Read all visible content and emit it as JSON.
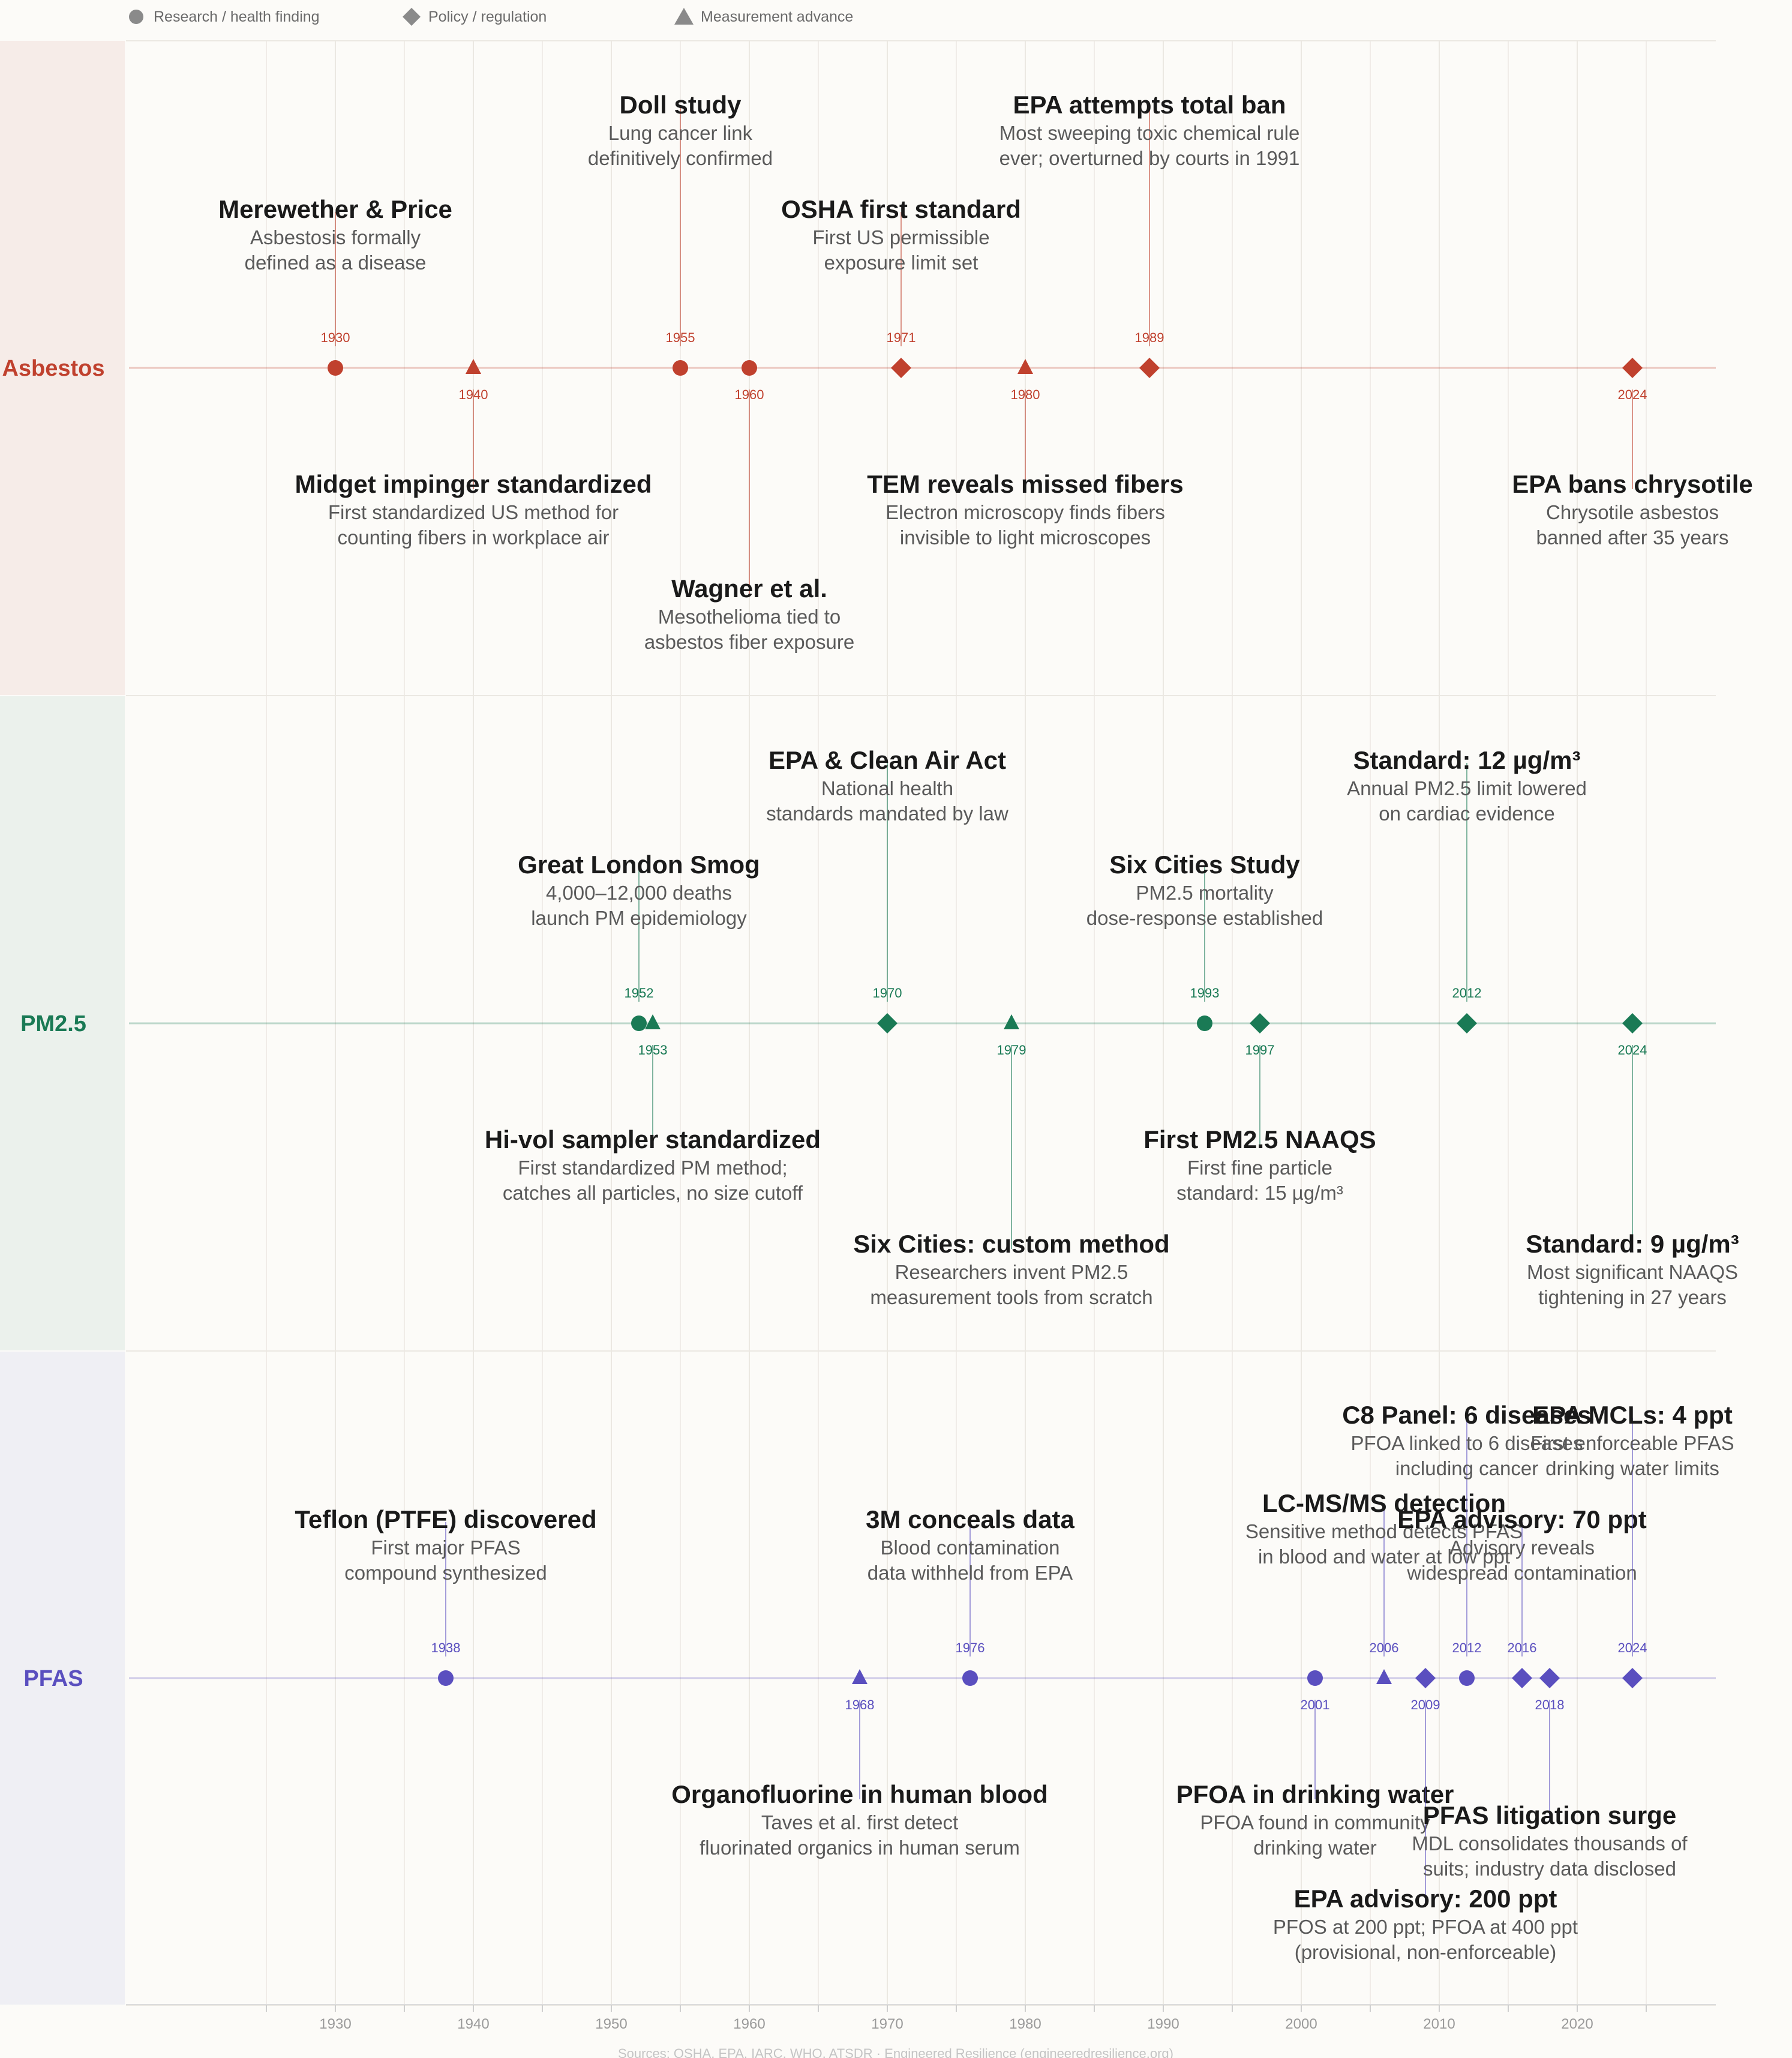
{
  "legend": {
    "research": "Research / health finding",
    "policy": "Policy / regulation",
    "measurement": "Measurement advance"
  },
  "footer": "Sources: OSHA, EPA, IARC, WHO, ATSDR · Engineered Resilience (engineeredresilience.org)",
  "colors": {
    "asbestos": "#c0412e",
    "pm25": "#1a7a55",
    "pfas": "#5a4fbf",
    "band_asbestos": "#f6ece8",
    "band_pm25": "#ebf1ec",
    "band_pfas": "#efeff4",
    "background": "#fcfbf8",
    "grid": "#ebe8e2",
    "tick_text": "#9a9a9a",
    "title_text": "#1a1a1a",
    "desc_text": "#5a5a5a"
  },
  "chart_data": {
    "type": "timeline",
    "x_axis": {
      "ticks": [
        1930,
        1940,
        1950,
        1960,
        1970,
        1980,
        1990,
        2000,
        2010,
        2020
      ],
      "range": [
        1915,
        2030
      ]
    },
    "grid": true,
    "legend_position": "top-left",
    "series": [
      {
        "name": "Asbestos",
        "color_key": "asbestos",
        "events": [
          {
            "year": 1930,
            "kind": "research",
            "side": "above",
            "tier": 1,
            "title": "Merewether & Price",
            "desc": [
              "Asbestosis formally",
              "defined as a disease"
            ]
          },
          {
            "year": 1940,
            "kind": "measurement",
            "side": "below",
            "tier": 1,
            "title": "Midget impinger standardized",
            "desc": [
              "First standardized US method for",
              "counting fibers in workplace air"
            ]
          },
          {
            "year": 1955,
            "kind": "research",
            "side": "above",
            "tier": 2,
            "title": "Doll study",
            "desc": [
              "Lung cancer link",
              "definitively confirmed"
            ]
          },
          {
            "year": 1960,
            "kind": "research",
            "side": "below",
            "tier": 2,
            "title": "Wagner et al.",
            "desc": [
              "Mesothelioma tied to",
              "asbestos fiber exposure"
            ]
          },
          {
            "year": 1971,
            "kind": "policy",
            "side": "above",
            "tier": 1,
            "title": "OSHA first standard",
            "desc": [
              "First US permissible",
              "exposure limit set"
            ]
          },
          {
            "year": 1980,
            "kind": "measurement",
            "side": "below",
            "tier": 1,
            "title": "TEM reveals missed fibers",
            "desc": [
              "Electron microscopy finds fibers",
              "invisible to light microscopes"
            ]
          },
          {
            "year": 1989,
            "kind": "policy",
            "side": "above",
            "tier": 2,
            "title": "EPA attempts total ban",
            "desc": [
              "Most sweeping toxic chemical rule",
              "ever; overturned by courts in 1991"
            ]
          },
          {
            "year": 2024,
            "kind": "policy",
            "side": "below",
            "tier": 1,
            "title": "EPA bans chrysotile",
            "desc": [
              "Chrysotile asbestos",
              "banned after 35 years"
            ]
          }
        ]
      },
      {
        "name": "PM2.5",
        "color_key": "pm25",
        "events": [
          {
            "year": 1952,
            "kind": "research",
            "side": "above",
            "tier": 1,
            "title": "Great London Smog",
            "desc": [
              "4,000–12,000 deaths",
              "launch PM epidemiology"
            ]
          },
          {
            "year": 1953,
            "kind": "measurement",
            "side": "below",
            "tier": 1,
            "title": "Hi-vol sampler standardized",
            "desc": [
              "First standardized PM method;",
              "catches all particles, no size cutoff"
            ]
          },
          {
            "year": 1970,
            "kind": "policy",
            "side": "above",
            "tier": 2,
            "title": "EPA & Clean Air Act",
            "desc": [
              "National health",
              "standards mandated by law"
            ]
          },
          {
            "year": 1979,
            "kind": "measurement",
            "side": "below",
            "tier": 2,
            "title": "Six Cities: custom method",
            "desc": [
              "Researchers invent PM2.5",
              "measurement tools from scratch"
            ]
          },
          {
            "year": 1993,
            "kind": "research",
            "side": "above",
            "tier": 1,
            "title": "Six Cities Study",
            "desc": [
              "PM2.5 mortality",
              "dose-response established"
            ]
          },
          {
            "year": 1997,
            "kind": "policy",
            "side": "below",
            "tier": 1,
            "title": "First PM2.5 NAAQS",
            "desc": [
              "First fine particle",
              "standard: 15 µg/m³"
            ]
          },
          {
            "year": 2012,
            "kind": "policy",
            "side": "above",
            "tier": 2,
            "title": "Standard: 12 µg/m³",
            "desc": [
              "Annual PM2.5 limit lowered",
              "on cardiac evidence"
            ]
          },
          {
            "year": 2024,
            "kind": "policy",
            "side": "below",
            "tier": 2,
            "title": "Standard: 9 µg/m³",
            "desc": [
              "Most significant NAAQS",
              "tightening in 27 years"
            ]
          }
        ]
      },
      {
        "name": "PFAS",
        "color_key": "pfas",
        "events": [
          {
            "year": 1938,
            "kind": "research",
            "side": "above",
            "tier": 1,
            "title": "Teflon (PTFE) discovered",
            "desc": [
              "First major PFAS",
              "compound synthesized"
            ]
          },
          {
            "year": 1968,
            "kind": "measurement",
            "side": "below",
            "tier": 1,
            "title": "Organofluorine in human blood",
            "desc": [
              "Taves et al. first detect",
              "fluorinated organics in human serum"
            ]
          },
          {
            "year": 1976,
            "kind": "research",
            "side": "above",
            "tier": 1,
            "title": "3M conceals data",
            "desc": [
              "Blood contamination",
              "data withheld from EPA"
            ]
          },
          {
            "year": 2001,
            "kind": "research",
            "side": "below",
            "tier": 1,
            "title": "PFOA in drinking water",
            "desc": [
              "PFOA found in community",
              "drinking water"
            ]
          },
          {
            "year": 2006,
            "kind": "measurement",
            "side": "above",
            "tier": 2,
            "title": "LC-MS/MS detection",
            "desc": [
              "Sensitive method detects PFAS",
              "in blood and water at low ppt"
            ]
          },
          {
            "year": 2009,
            "kind": "policy",
            "side": "below",
            "tier": 3,
            "title": "EPA advisory: 200 ppt",
            "desc": [
              "PFOS at 200 ppt; PFOA at 400 ppt",
              "(provisional, non-enforceable)"
            ]
          },
          {
            "year": 2012,
            "kind": "research",
            "side": "above",
            "tier": 3,
            "title": "C8 Panel: 6 diseases",
            "desc": [
              "PFOA linked to 6 diseases",
              "including cancer"
            ]
          },
          {
            "year": 2016,
            "kind": "policy",
            "side": "above",
            "tier": 1,
            "title": "EPA advisory: 70 ppt",
            "desc": [
              "Advisory reveals",
              "widespread contamination"
            ]
          },
          {
            "year": 2018,
            "kind": "policy",
            "side": "below",
            "tier": 2,
            "title": "PFAS litigation surge",
            "desc": [
              "MDL consolidates thousands of",
              "suits; industry data disclosed"
            ]
          },
          {
            "year": 2024,
            "kind": "policy",
            "side": "above",
            "tier": 3,
            "title": "EPA MCLs: 4 ppt",
            "desc": [
              "First enforceable PFAS",
              "drinking water limits"
            ]
          }
        ]
      }
    ]
  }
}
